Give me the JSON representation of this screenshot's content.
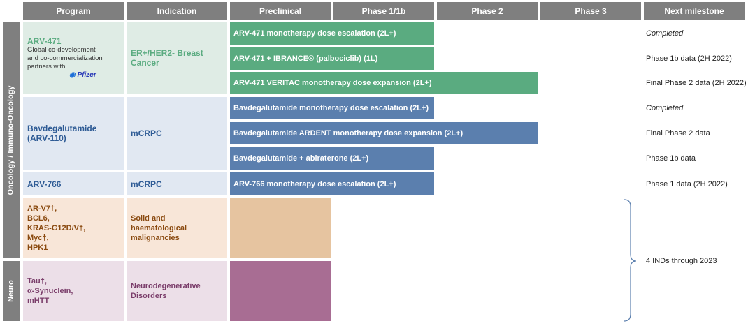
{
  "headers": [
    "Program",
    "Indication",
    "Preclinical",
    "Phase 1/1b",
    "Phase 2",
    "Phase 3",
    "Next milestone"
  ],
  "sections": {
    "oncology": "Oncology / Immuno-Oncology",
    "neuro": "Neuro"
  },
  "programs": {
    "arv471": {
      "name": "ARV-471",
      "note": "Global co-development and co-commercialization partners with",
      "partner_logo": "Pfizer",
      "indication": "ER+/HER2- Breast Cancer"
    },
    "bavdeg": {
      "name": "Bavdegalutamide (ARV-110)",
      "indication": "mCRPC"
    },
    "arv766": {
      "name": "ARV-766",
      "indication": "mCRPC"
    },
    "discovery": {
      "lines": [
        "AR-V7†,",
        "BCL6,",
        "KRAS-G12D/V†,",
        "Myc†,",
        "HPK1"
      ],
      "indication": "Solid and haematological malignancies"
    },
    "neuro": {
      "lines": [
        "Tau†,",
        "α-Synuclein,",
        "mHTT"
      ],
      "indication": "Neurodegenerative Disorders"
    }
  },
  "trials": [
    {
      "label": "ARV-471 monotherapy  dose escalation  (2L+)",
      "phase_reached": "Phase 1/1b",
      "milestone": "Completed"
    },
    {
      "label": "ARV-471 + IBRANCE® (palbociclib)  (1L)",
      "phase_reached": "Phase 1/1b",
      "milestone": "Phase 1b data (2H 2022)"
    },
    {
      "label": "ARV-471 VERITAC monotherapy dose expansion  (2L+)",
      "phase_reached": "Phase 2",
      "milestone": "Final Phase 2 data  (2H 2022)"
    },
    {
      "label": "Bavdegalutamide monotherapy  dose escalation  (2L+)",
      "phase_reached": "Phase 1/1b",
      "milestone": "Completed"
    },
    {
      "label": "Bavdegalutamide ARDENT monotherapy dose expansion (2L+)",
      "phase_reached": "Phase 2",
      "milestone": "Final Phase 2 data"
    },
    {
      "label": "Bavdegalutamide  + abiraterone  (2L+)",
      "phase_reached": "Phase 1/1b",
      "milestone": "Phase 1b data"
    },
    {
      "label": "ARV-766 monotherapy  dose escalation  (2L+)",
      "phase_reached": "Phase 1/1b",
      "milestone": "Phase 1 data (2H 2022)"
    }
  ],
  "shared_milestone": "4 INDs through  2023",
  "colors": {
    "header": "#7f7f7f",
    "green": "#5aab80",
    "blue": "#5b7fae",
    "preclinical_discovery": "#e6c4a0",
    "preclinical_neuro": "#a86d93"
  }
}
